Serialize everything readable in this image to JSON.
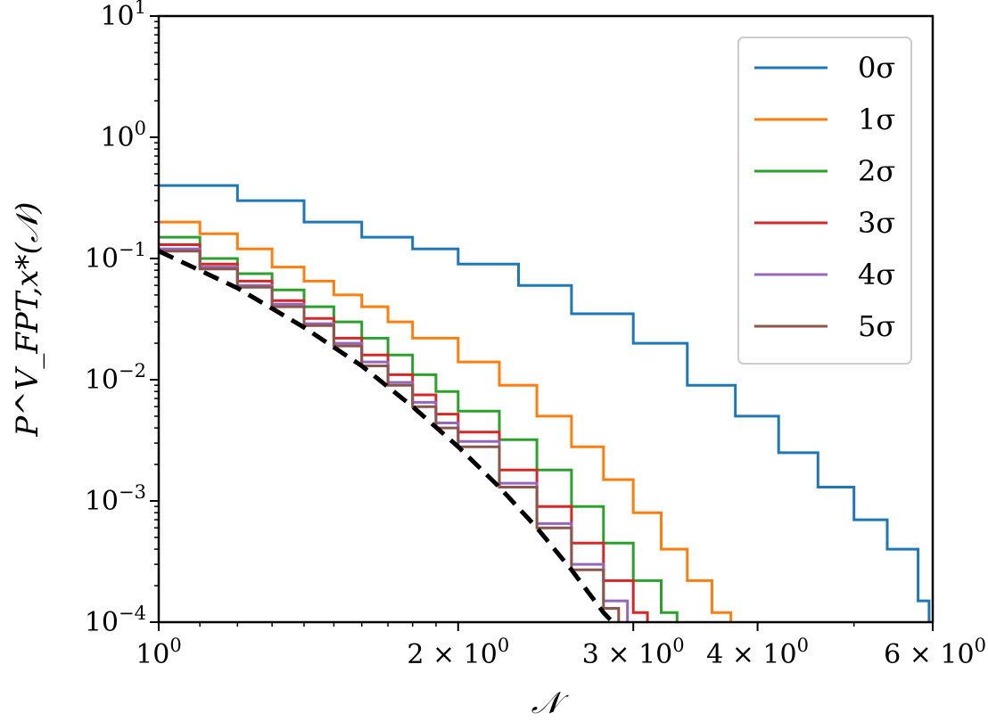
{
  "chart_data": {
    "type": "line",
    "title": "",
    "xlabel": "𝒩",
    "ylabel": "P^V_FPT,x*(𝒩)",
    "x_scale": "log",
    "y_scale": "log",
    "xlim": [
      1.0,
      6.0
    ],
    "ylim": [
      0.0001,
      10
    ],
    "x_ticks": [
      {
        "value": 1,
        "label": "10",
        "sup": "0"
      },
      {
        "value": 2,
        "label": "2 × 10",
        "sup": "0"
      },
      {
        "value": 3,
        "label": "3 × 10",
        "sup": "0"
      },
      {
        "value": 4,
        "label": "4 × 10",
        "sup": "0"
      },
      {
        "value": 6,
        "label": "6 × 10",
        "sup": "0"
      }
    ],
    "y_ticks": [
      {
        "value": 10,
        "label": "10",
        "sup": "1"
      },
      {
        "value": 1,
        "label": "10",
        "sup": "0"
      },
      {
        "value": 0.1,
        "label": "10",
        "sup": "−1"
      },
      {
        "value": 0.01,
        "label": "10",
        "sup": "−2"
      },
      {
        "value": 0.001,
        "label": "10",
        "sup": "−3"
      },
      {
        "value": 0.0001,
        "label": "10",
        "sup": "−4"
      }
    ],
    "grid": false,
    "legend_position": "top-right",
    "series": [
      {
        "name": "0σ",
        "color": "#1f77b4",
        "style": "step",
        "x": [
          1.0,
          1.2,
          1.4,
          1.6,
          1.8,
          2.0,
          2.3,
          2.6,
          3.0,
          3.4,
          3.8,
          4.2,
          4.6,
          5.0,
          5.4,
          5.8,
          5.95
        ],
        "y": [
          0.4,
          0.3,
          0.2,
          0.15,
          0.12,
          0.09,
          0.06,
          0.035,
          0.02,
          0.009,
          0.005,
          0.0025,
          0.0013,
          0.0007,
          0.0004,
          0.00015,
          0.0001
        ]
      },
      {
        "name": "1σ",
        "color": "#ff7f0e",
        "style": "step",
        "x": [
          1.0,
          1.1,
          1.2,
          1.3,
          1.4,
          1.5,
          1.6,
          1.7,
          1.8,
          2.0,
          2.2,
          2.4,
          2.6,
          2.8,
          3.0,
          3.2,
          3.4,
          3.6,
          3.76
        ],
        "y": [
          0.2,
          0.16,
          0.12,
          0.085,
          0.065,
          0.05,
          0.04,
          0.03,
          0.022,
          0.014,
          0.009,
          0.005,
          0.0028,
          0.0015,
          0.0008,
          0.0004,
          0.00022,
          0.00012,
          0.0001
        ]
      },
      {
        "name": "2σ",
        "color": "#2ca02c",
        "style": "step",
        "x": [
          1.0,
          1.1,
          1.2,
          1.3,
          1.4,
          1.5,
          1.6,
          1.7,
          1.8,
          1.9,
          2.0,
          2.2,
          2.4,
          2.6,
          2.8,
          3.0,
          3.2,
          3.32
        ],
        "y": [
          0.15,
          0.1,
          0.075,
          0.055,
          0.04,
          0.03,
          0.022,
          0.016,
          0.011,
          0.008,
          0.0055,
          0.0032,
          0.0018,
          0.0009,
          0.00045,
          0.00022,
          0.00012,
          0.0001
        ]
      },
      {
        "name": "3σ",
        "color": "#d62728",
        "style": "step",
        "x": [
          1.0,
          1.1,
          1.2,
          1.3,
          1.4,
          1.5,
          1.6,
          1.7,
          1.8,
          1.9,
          2.0,
          2.2,
          2.4,
          2.6,
          2.8,
          3.0,
          3.1
        ],
        "y": [
          0.13,
          0.09,
          0.065,
          0.045,
          0.032,
          0.022,
          0.016,
          0.011,
          0.0075,
          0.0052,
          0.0037,
          0.0018,
          0.0009,
          0.00045,
          0.00022,
          0.00012,
          0.0001
        ]
      },
      {
        "name": "4σ",
        "color": "#9467bd",
        "style": "step",
        "x": [
          1.0,
          1.1,
          1.2,
          1.3,
          1.4,
          1.5,
          1.6,
          1.7,
          1.8,
          1.9,
          2.0,
          2.2,
          2.4,
          2.6,
          2.8,
          2.96
        ],
        "y": [
          0.12,
          0.085,
          0.06,
          0.042,
          0.029,
          0.02,
          0.014,
          0.0095,
          0.0065,
          0.0044,
          0.0031,
          0.0014,
          0.00065,
          0.0003,
          0.00015,
          0.0001
        ]
      },
      {
        "name": "5σ",
        "color": "#8c564b",
        "style": "step",
        "x": [
          1.0,
          1.1,
          1.2,
          1.3,
          1.4,
          1.5,
          1.6,
          1.7,
          1.8,
          1.9,
          2.0,
          2.2,
          2.4,
          2.6,
          2.8,
          2.9
        ],
        "y": [
          0.115,
          0.082,
          0.058,
          0.04,
          0.028,
          0.019,
          0.013,
          0.009,
          0.006,
          0.004,
          0.0028,
          0.0013,
          0.0006,
          0.00027,
          0.00013,
          0.0001
        ]
      },
      {
        "name": "",
        "color": "#000000",
        "style": "dashed",
        "x": [
          1.0,
          1.2,
          1.4,
          1.6,
          1.8,
          2.0,
          2.2,
          2.4,
          2.6,
          2.8,
          2.86
        ],
        "y": [
          0.115,
          0.057,
          0.027,
          0.013,
          0.006,
          0.0028,
          0.0013,
          0.0006,
          0.00027,
          0.00012,
          0.0001
        ]
      }
    ]
  }
}
